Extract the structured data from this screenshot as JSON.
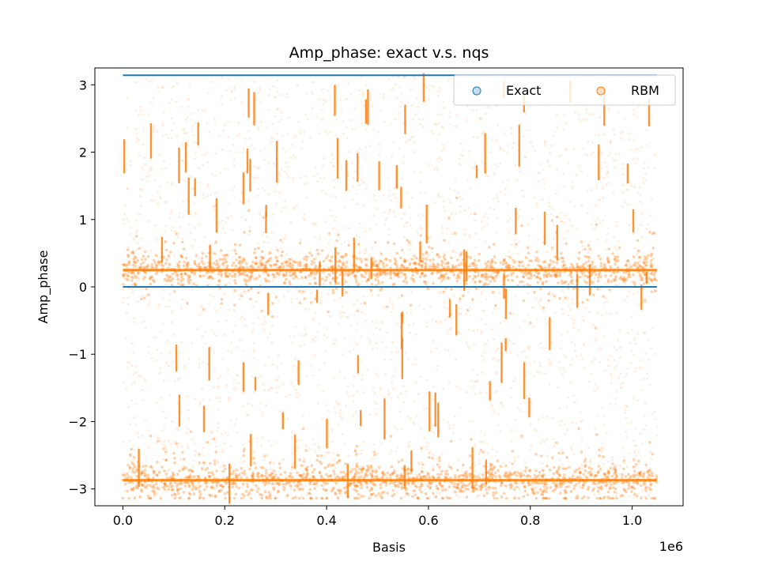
{
  "chart_data": {
    "type": "scatter",
    "title": "Amp_phase: exact v.s. nqs",
    "xlabel": "Basis",
    "ylabel": "Amp_phase",
    "x_offset_label": "1e6",
    "xlim": [
      -0.055,
      1.1
    ],
    "ylim": [
      -3.25,
      3.25
    ],
    "x_ticks": [
      0.0,
      0.2,
      0.4,
      0.6,
      0.8,
      1.0
    ],
    "x_tick_labels": [
      "0.0",
      "0.2",
      "0.4",
      "0.6",
      "0.8",
      "1.0"
    ],
    "y_ticks": [
      3,
      2,
      1,
      0,
      -1,
      -2,
      -3
    ],
    "y_tick_labels": [
      "3",
      "2",
      "1",
      "0",
      "−1",
      "−2",
      "−3"
    ],
    "x_data_range": [
      0.0,
      1.048576
    ],
    "legend_position": "upper-right",
    "grid": false,
    "series": [
      {
        "name": "Exact",
        "color": "#1f77b4",
        "levels": [
          3.14159,
          0.0
        ],
        "marker": "circle"
      },
      {
        "name": "RBM",
        "color": "#ff7f0e",
        "marker": "circle",
        "dense_bands": [
          0.25,
          -2.87
        ],
        "band_spread": 0.18,
        "value_range": [
          -3.14,
          3.14
        ]
      }
    ]
  }
}
